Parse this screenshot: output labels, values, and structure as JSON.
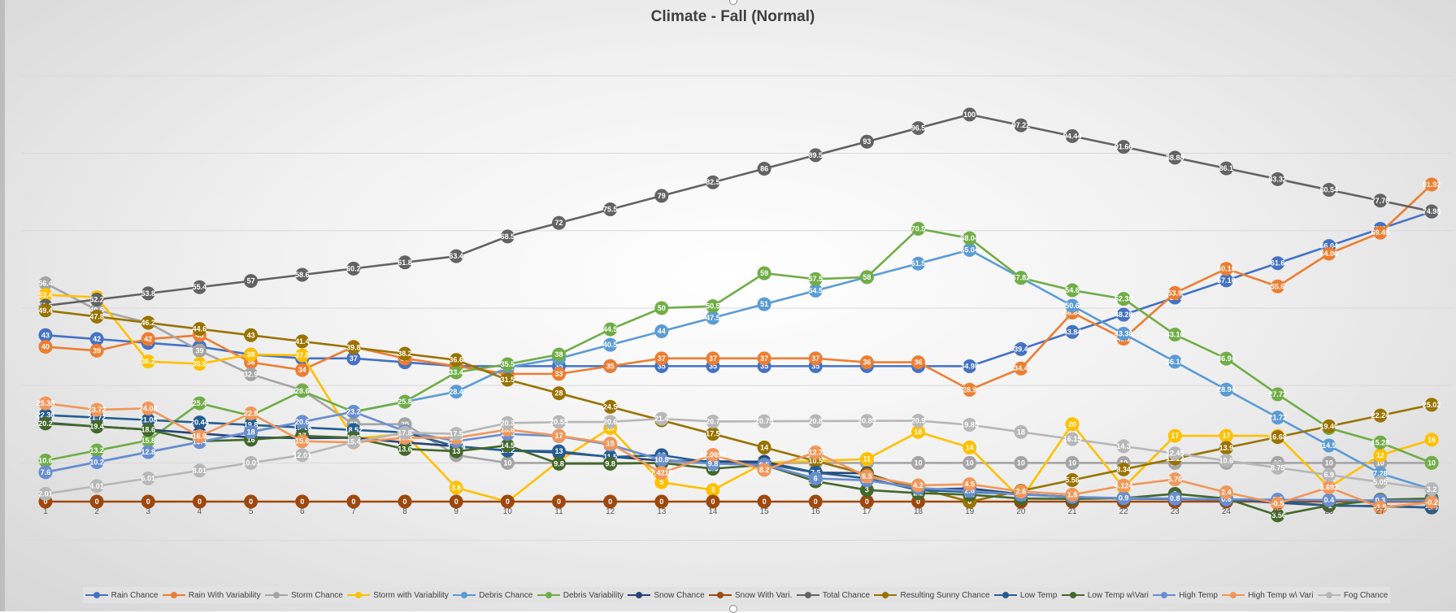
{
  "chart_data": {
    "type": "line",
    "title": "Climate - Fall (Normal)",
    "xlabel": "",
    "ylabel": "",
    "x": [
      1,
      2,
      3,
      4,
      5,
      6,
      7,
      8,
      9,
      10,
      11,
      12,
      13,
      14,
      15,
      16,
      17,
      18,
      19,
      20,
      21,
      22,
      23,
      24,
      25,
      26,
      27,
      28
    ],
    "ylim": [
      -10,
      110
    ],
    "grid": true,
    "legend_position": "bottom",
    "series": [
      {
        "name": "Rain Chance",
        "color": "#4472C4",
        "values": [
          43,
          42,
          41,
          40,
          38,
          37,
          37,
          36,
          35,
          35,
          35,
          35,
          35,
          35,
          35,
          35,
          35,
          35,
          34.98,
          39.4,
          43.84,
          48.28,
          52.72,
          57.16,
          61.6,
          66.04,
          70.48,
          74.92
        ]
      },
      {
        "name": "Rain With Variability",
        "color": "#ED7D31",
        "values": [
          40,
          39,
          42,
          43,
          36,
          34,
          40,
          37,
          35,
          33,
          33,
          35,
          37,
          37,
          37,
          37,
          36,
          36,
          28.9,
          34.4,
          48.84,
          42.1,
          53.9,
          60.16,
          55.6,
          64.06,
          69.48,
          81.92
        ]
      },
      {
        "name": "Storm Chance",
        "color": "#A5A5A5",
        "values": [
          56.4,
          49.5,
          46.2,
          39,
          32.9,
          28.8,
          20,
          20,
          12,
          10,
          10,
          10,
          10,
          10,
          10,
          10,
          10,
          10,
          10,
          10,
          10,
          10,
          10,
          10,
          10,
          10,
          10,
          10
        ]
      },
      {
        "name": "Storm with Variability",
        "color": "#FFC000",
        "values": [
          53.4,
          52.8,
          36.2,
          35.6,
          38,
          37.8,
          16.3,
          17.5,
          3.6,
          0,
          10.5,
          19,
          5,
          3,
          10,
          10.5,
          11,
          18,
          14,
          0.6,
          20,
          3.7,
          17,
          17,
          17,
          3.7,
          12,
          16
        ]
      },
      {
        "name": "Debris Chance",
        "color": "#5B9BD5",
        "values": [
          7.6,
          10.2,
          12.8,
          15.4,
          18,
          20.6,
          23.2,
          25.8,
          28.4,
          34.7,
          37,
          40.5,
          44,
          47.5,
          51,
          54.5,
          58,
          61.5,
          65.04,
          57.82,
          50.6,
          43.38,
          36.16,
          28.94,
          21.72,
          14.5,
          7.28,
          3.2
        ]
      },
      {
        "name": "Debris Variability",
        "color": "#70AD47",
        "values": [
          10.6,
          13.2,
          15.8,
          25.4,
          22.2,
          28.6,
          23.2,
          25.8,
          33.4,
          35.5,
          38,
          44.5,
          50,
          50.5,
          59,
          57.5,
          58,
          70.5,
          68.04,
          57.82,
          54.6,
          52.38,
          43.16,
          36.94,
          27.72,
          19,
          15.28,
          10
        ]
      },
      {
        "name": "Snow Chance",
        "color": "#264478",
        "values": [
          20.4,
          19.4,
          18.6,
          17.6,
          16.6,
          16.4,
          16.5,
          15.3,
          14.3,
          13.2,
          12.7,
          11.6,
          10.6,
          10.4,
          10.3,
          7.5,
          7.3,
          3.1,
          3.4,
          1.9,
          1.2,
          0.8,
          0.7,
          0.5,
          -0.3,
          -1,
          -1.2,
          -1.5
        ]
      },
      {
        "name": "Snow With Vari.",
        "color": "#9E480E",
        "values": [
          0,
          0,
          0,
          0,
          0,
          0,
          0,
          0,
          0,
          0,
          0,
          0,
          0,
          0,
          0,
          0,
          0,
          0,
          0,
          0,
          0,
          0,
          0,
          0,
          0,
          0,
          0,
          0
        ]
      },
      {
        "name": "Total Chance",
        "color": "#636363",
        "values": [
          50.6,
          52.2,
          53.8,
          55.4,
          57,
          58.6,
          60.2,
          61.8,
          63.4,
          68.5,
          72,
          75.5,
          79,
          82.5,
          86,
          89.5,
          93,
          96.5,
          100,
          97.22,
          94.44,
          91.66,
          88.88,
          86.1,
          83.32,
          80.54,
          77.76,
          74.98
        ]
      },
      {
        "name": "Resulting Sunny Chance",
        "color": "#997300",
        "values": [
          49.4,
          47.8,
          46.2,
          44.6,
          43,
          41.4,
          39.8,
          38.2,
          36.6,
          31.5,
          28,
          24.5,
          21,
          17.5,
          14,
          10.5,
          7,
          3.5,
          0,
          2.78,
          5.56,
          8.34,
          11.12,
          13.9,
          16.68,
          19.46,
          22.24,
          25.02
        ]
      },
      {
        "name": "Low Temp",
        "color": "#255E91",
        "values": [
          22.36,
          21.72,
          21.08,
          20.44,
          19.8,
          19.16,
          18.52,
          17.88,
          14.24,
          13.2,
          13,
          11.5,
          12,
          10,
          9.8,
          7.5,
          6,
          3,
          2.5,
          1.9,
          1.2,
          0.8,
          0.7,
          0.5,
          0,
          -1,
          -1.2,
          -1.5
        ]
      },
      {
        "name": "Low Temp w\\Vari",
        "color": "#43682B",
        "values": [
          20.2,
          19.4,
          18.6,
          15.6,
          16,
          17,
          16.5,
          13.6,
          13,
          14.5,
          9.8,
          9.8,
          10,
          8.5,
          9.5,
          5.24,
          3,
          2.2,
          1.8,
          0.8,
          0.7,
          0.9,
          2,
          0.8,
          -3.56,
          -1,
          0.5,
          0.8
        ]
      },
      {
        "name": "High Temp",
        "color": "#698ED0",
        "values": [
          7.6,
          10.2,
          12.8,
          15.4,
          18,
          20.6,
          23.2,
          18.2,
          15.6,
          17.5,
          16.9,
          14.7,
          10.8,
          9.8,
          9.5,
          6,
          5.5,
          3.5,
          2.8,
          1.8,
          1.2,
          0.9,
          0.8,
          0.6,
          0.5,
          0.4,
          0.3,
          0.2
        ]
      },
      {
        "name": "High Temp w\\ Vari",
        "color": "#F1975A",
        "values": [
          25.38,
          23.72,
          24.08,
          16.9,
          22.8,
          15.6,
          15.3,
          16.5,
          16.5,
          18.6,
          17,
          15,
          7.4218,
          12.0692,
          8.2,
          12.7,
          6.5,
          4.2,
          4.5,
          2.6,
          1.8,
          4.124,
          5.76,
          2.4,
          -0.5,
          3.692,
          -1.5,
          -0.2
        ]
      },
      {
        "name": "Fog Chance",
        "color": "#B7B7B7",
        "values": [
          2.01,
          4.01,
          6.01,
          8.01,
          10.01,
          12.01,
          15.4,
          17.8,
          17.5,
          20.3,
          20.55,
          20.6,
          21.4,
          20.7,
          20.75,
          20.8,
          20.85,
          20.9,
          19.85,
          18,
          16.15,
          14.3,
          12.45,
          10.6,
          8.75,
          6.9,
          5.05,
          3.2
        ]
      }
    ],
    "x_tick_labels": [
      "1",
      "2",
      "3",
      "4",
      "5",
      "6",
      "7",
      "8",
      "9",
      "10",
      "11",
      "12",
      "13",
      "14",
      "15",
      "16",
      "17",
      "18",
      "19",
      "20",
      "21",
      "22",
      "23",
      "24",
      "25",
      "26",
      "27",
      "28"
    ]
  }
}
